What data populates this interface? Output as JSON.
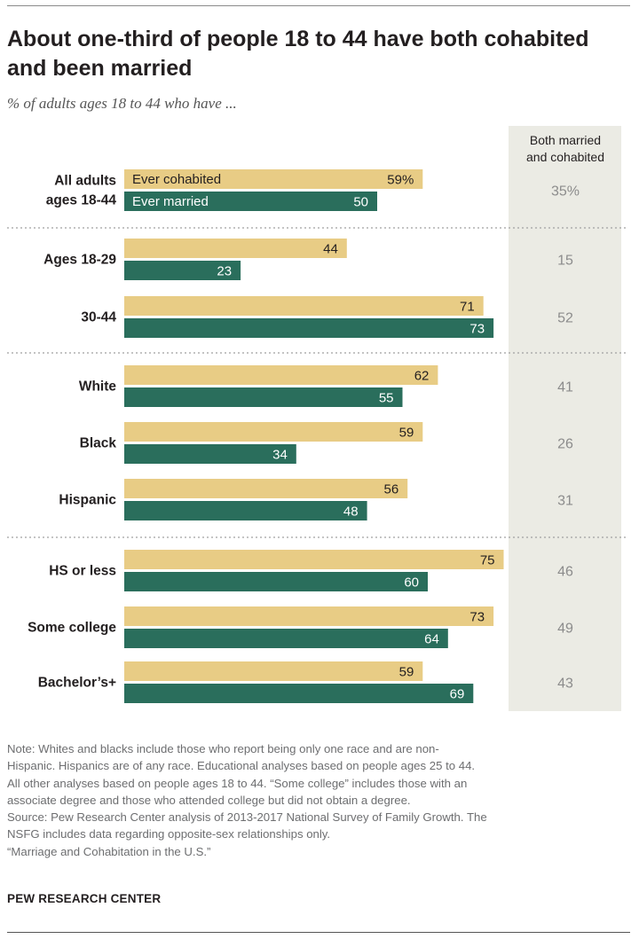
{
  "title": "About one-third of people 18 to 44 have both cohabited and been married",
  "subtitle": "% of adults ages 18 to 44 who have ...",
  "notes": [
    "Note: Whites and blacks include those who report being only one race and are non-",
    "Hispanic. Hispanics are of any race. Educational analyses based on people ages 25 to 44.",
    "All other analyses based on people ages 18 to 44. “Some college” includes those with an",
    "associate degree and those who attended college but did not obtain a degree.",
    "Source: Pew Research Center analysis of 2013-2017 National Survey of Family Growth. The",
    "NSFG includes data regarding opposite-sex relationships only.",
    "“Marriage and Cohabitation in the U.S.”"
  ],
  "source_org": "PEW RESEARCH CENTER",
  "chart_data": {
    "type": "bar",
    "orientation": "horizontal",
    "both_column_header": [
      "Both married",
      "and cohabited"
    ],
    "categories": [
      [
        "All adults",
        "ages 18-44"
      ],
      [
        "Ages 18-29"
      ],
      [
        "30-44"
      ],
      [
        "White"
      ],
      [
        "Black"
      ],
      [
        "Hispanic"
      ],
      [
        "HS or less"
      ],
      [
        "Some college"
      ],
      [
        "Bachelor’s+"
      ]
    ],
    "groups": [
      [
        0
      ],
      [
        1,
        2
      ],
      [
        3,
        4,
        5
      ],
      [
        6,
        7,
        8
      ]
    ],
    "series": [
      {
        "name": "Ever cohabited",
        "color": "#e8cc85",
        "label_color": "#231f20",
        "values": [
          59,
          44,
          71,
          62,
          59,
          56,
          75,
          73,
          59
        ],
        "labels": [
          "59%",
          "44",
          "71",
          "62",
          "59",
          "56",
          "75",
          "73",
          "59"
        ]
      },
      {
        "name": "Ever married",
        "color": "#2a6e5c",
        "label_color": "#ffffff",
        "values": [
          50,
          23,
          73,
          55,
          34,
          48,
          60,
          64,
          69
        ],
        "labels": [
          "50",
          "23",
          "73",
          "55",
          "34",
          "48",
          "60",
          "64",
          "69"
        ]
      }
    ],
    "both_married_and_cohabited": {
      "values": [
        35,
        15,
        52,
        41,
        26,
        31,
        46,
        49,
        43
      ],
      "labels": [
        "35%",
        "15",
        "52",
        "41",
        "26",
        "31",
        "46",
        "49",
        "43"
      ]
    },
    "colors": {
      "column_bg": "#ebebe4",
      "divider": "#a0a0a0",
      "column_text": "#8c8c8c"
    },
    "xlim": [
      0,
      100
    ]
  }
}
